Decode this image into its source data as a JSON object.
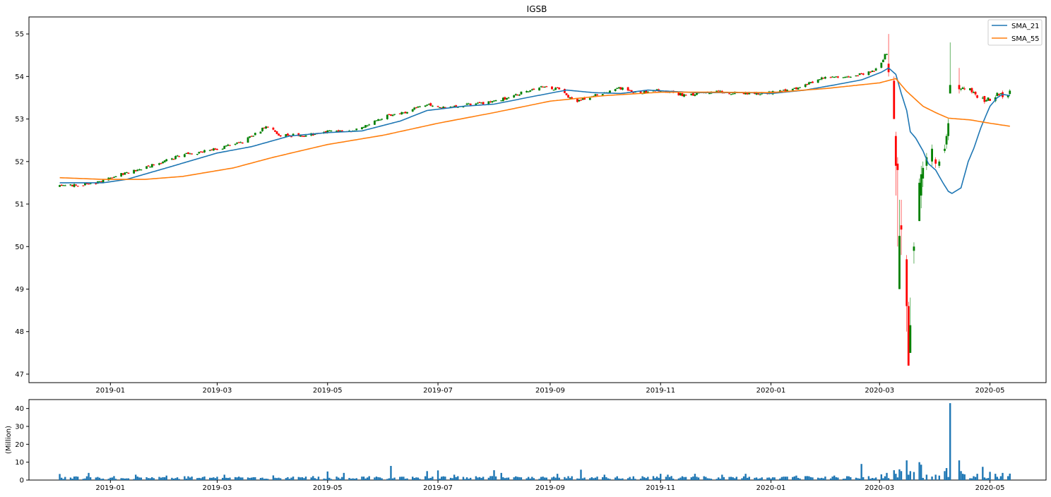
{
  "chart_data": [
    {
      "type": "candlestick",
      "title": "IGSB",
      "xlabel": "",
      "ylabel": "",
      "ylim": [
        46.8,
        55.4
      ],
      "xlim": [
        "2018-11-17",
        "2020-06-01"
      ],
      "grid": false,
      "legend_position": "top-right",
      "yticks": [
        47,
        48,
        49,
        50,
        51,
        52,
        53,
        54,
        55
      ],
      "xticks": [
        "2019-01",
        "2019-03",
        "2019-05",
        "2019-07",
        "2019-09",
        "2019-11",
        "2020-01",
        "2020-03",
        "2020-05"
      ],
      "xtick_dates": [
        "2019-01-01",
        "2019-03-01",
        "2019-05-01",
        "2019-07-01",
        "2019-09-01",
        "2019-11-01",
        "2020-01-01",
        "2020-03-01",
        "2020-05-01"
      ],
      "date_range": [
        "2018-12-04",
        "2020-05-12"
      ],
      "price_anchors": [
        [
          "2018-12-04",
          51.42
        ],
        [
          "2018-12-24",
          51.5
        ],
        [
          "2019-01-02",
          51.65
        ],
        [
          "2019-01-20",
          51.85
        ],
        [
          "2019-02-10",
          52.15
        ],
        [
          "2019-03-01",
          52.3
        ],
        [
          "2019-03-15",
          52.45
        ],
        [
          "2019-03-28",
          52.82
        ],
        [
          "2019-04-05",
          52.62
        ],
        [
          "2019-04-20",
          52.62
        ],
        [
          "2019-05-01",
          52.7
        ],
        [
          "2019-05-15",
          52.72
        ],
        [
          "2019-06-01",
          53.05
        ],
        [
          "2019-06-12",
          53.15
        ],
        [
          "2019-06-25",
          53.35
        ],
        [
          "2019-07-05",
          53.25
        ],
        [
          "2019-07-20",
          53.35
        ],
        [
          "2019-08-01",
          53.4
        ],
        [
          "2019-08-15",
          53.6
        ],
        [
          "2019-08-28",
          53.78
        ],
        [
          "2019-09-05",
          53.7
        ],
        [
          "2019-09-15",
          53.42
        ],
        [
          "2019-10-01",
          53.62
        ],
        [
          "2019-10-08",
          53.75
        ],
        [
          "2019-10-20",
          53.6
        ],
        [
          "2019-11-01",
          53.68
        ],
        [
          "2019-11-15",
          53.55
        ],
        [
          "2019-12-01",
          53.65
        ],
        [
          "2019-12-15",
          53.6
        ],
        [
          "2020-01-01",
          53.62
        ],
        [
          "2020-01-15",
          53.72
        ],
        [
          "2020-02-01",
          54.02
        ],
        [
          "2020-02-15",
          53.98
        ],
        [
          "2020-03-01",
          54.2
        ],
        [
          "2020-03-04",
          54.52
        ]
      ],
      "crash_candles": [
        {
          "date": "2020-03-06",
          "open": 54.3,
          "close": 54.1,
          "high": 55.0,
          "low": 54.0
        },
        {
          "date": "2020-03-09",
          "open": 53.9,
          "close": 53.0,
          "high": 54.0,
          "low": 53.0
        },
        {
          "date": "2020-03-10",
          "open": 52.6,
          "close": 51.9,
          "high": 52.7,
          "low": 51.2
        },
        {
          "date": "2020-03-11",
          "open": 51.95,
          "close": 51.8,
          "high": 52.1,
          "low": 50.0
        },
        {
          "date": "2020-03-12",
          "open": 49.0,
          "close": 50.25,
          "high": 51.1,
          "low": 49.0
        },
        {
          "date": "2020-03-13",
          "open": 50.5,
          "close": 50.4,
          "high": 51.1,
          "low": 49.8
        },
        {
          "date": "2020-03-16",
          "open": 49.7,
          "close": 48.6,
          "high": 49.8,
          "low": 48.0
        },
        {
          "date": "2020-03-17",
          "open": 48.6,
          "close": 47.2,
          "high": 48.7,
          "low": 47.2
        },
        {
          "date": "2020-03-18",
          "open": 47.5,
          "close": 48.15,
          "high": 48.8,
          "low": 47.5
        },
        {
          "date": "2020-03-20",
          "open": 49.9,
          "close": 50.0,
          "high": 50.1,
          "low": 49.6
        },
        {
          "date": "2020-03-23",
          "open": 50.6,
          "close": 51.5,
          "high": 51.6,
          "low": 50.6
        },
        {
          "date": "2020-03-24",
          "open": 51.2,
          "close": 51.7,
          "high": 51.9,
          "low": 50.9
        },
        {
          "date": "2020-03-25",
          "open": 51.6,
          "close": 51.85,
          "high": 52.0,
          "low": 51.4
        },
        {
          "date": "2020-03-27",
          "open": 51.9,
          "close": 52.1,
          "high": 52.2,
          "low": 51.8
        },
        {
          "date": "2020-03-30",
          "open": 52.0,
          "close": 52.3,
          "high": 52.4,
          "low": 51.9
        },
        {
          "date": "2020-04-01",
          "open": 52.05,
          "close": 51.95,
          "high": 52.1,
          "low": 51.85
        },
        {
          "date": "2020-04-03",
          "open": 51.9,
          "close": 52.0,
          "high": 52.05,
          "low": 51.85
        },
        {
          "date": "2020-04-06",
          "open": 52.25,
          "close": 52.3,
          "high": 52.4,
          "low": 52.2
        },
        {
          "date": "2020-04-07",
          "open": 52.4,
          "close": 52.6,
          "high": 52.65,
          "low": 52.3
        },
        {
          "date": "2020-04-08",
          "open": 52.6,
          "close": 52.9,
          "high": 53.0,
          "low": 52.5
        },
        {
          "date": "2020-04-09",
          "open": 53.6,
          "close": 53.8,
          "high": 54.8,
          "low": 53.6
        },
        {
          "date": "2020-04-14",
          "open": 53.8,
          "close": 53.7,
          "high": 54.2,
          "low": 53.6
        }
      ],
      "recovery_anchors": [
        [
          "2020-04-15",
          53.75
        ],
        [
          "2020-04-22",
          53.6
        ],
        [
          "2020-04-28",
          53.45
        ],
        [
          "2020-05-05",
          53.55
        ],
        [
          "2020-05-11",
          53.6
        ],
        [
          "2020-05-12",
          53.72
        ]
      ],
      "series": [
        {
          "name": "SMA_21",
          "color": "#1f77b4",
          "points": [
            [
              "2018-12-04",
              51.5
            ],
            [
              "2018-12-28",
              51.5
            ],
            [
              "2019-01-10",
              51.58
            ],
            [
              "2019-02-01",
              51.85
            ],
            [
              "2019-03-01",
              52.2
            ],
            [
              "2019-03-20",
              52.35
            ],
            [
              "2019-04-10",
              52.6
            ],
            [
              "2019-05-01",
              52.68
            ],
            [
              "2019-05-20",
              52.72
            ],
            [
              "2019-06-10",
              52.95
            ],
            [
              "2019-06-25",
              53.2
            ],
            [
              "2019-07-15",
              53.3
            ],
            [
              "2019-08-01",
              53.35
            ],
            [
              "2019-08-25",
              53.55
            ],
            [
              "2019-09-10",
              53.68
            ],
            [
              "2019-09-25",
              53.62
            ],
            [
              "2019-10-10",
              53.6
            ],
            [
              "2019-10-25",
              53.68
            ],
            [
              "2019-11-20",
              53.62
            ],
            [
              "2019-12-20",
              53.62
            ],
            [
              "2020-01-01",
              53.6
            ],
            [
              "2020-01-20",
              53.68
            ],
            [
              "2020-02-05",
              53.8
            ],
            [
              "2020-02-20",
              53.92
            ],
            [
              "2020-03-02",
              54.1
            ],
            [
              "2020-03-06",
              54.2
            ],
            [
              "2020-03-10",
              54.05
            ],
            [
              "2020-03-13",
              53.6
            ],
            [
              "2020-03-16",
              53.2
            ],
            [
              "2020-03-18",
              52.7
            ],
            [
              "2020-03-21",
              52.55
            ],
            [
              "2020-03-25",
              52.25
            ],
            [
              "2020-03-28",
              51.95
            ],
            [
              "2020-04-01",
              51.8
            ],
            [
              "2020-04-05",
              51.5
            ],
            [
              "2020-04-08",
              51.3
            ],
            [
              "2020-04-10",
              51.25
            ],
            [
              "2020-04-15",
              51.38
            ],
            [
              "2020-04-19",
              52.0
            ],
            [
              "2020-04-22",
              52.3
            ],
            [
              "2020-04-26",
              52.8
            ],
            [
              "2020-05-01",
              53.3
            ],
            [
              "2020-05-05",
              53.5
            ],
            [
              "2020-05-08",
              53.58
            ],
            [
              "2020-05-12",
              53.55
            ]
          ]
        },
        {
          "name": "SMA_55",
          "color": "#ff7f0e",
          "points": [
            [
              "2018-12-04",
              51.62
            ],
            [
              "2018-12-28",
              51.58
            ],
            [
              "2019-01-20",
              51.58
            ],
            [
              "2019-02-10",
              51.65
            ],
            [
              "2019-03-10",
              51.85
            ],
            [
              "2019-04-01",
              52.1
            ],
            [
              "2019-05-01",
              52.4
            ],
            [
              "2019-06-01",
              52.62
            ],
            [
              "2019-07-01",
              52.9
            ],
            [
              "2019-08-01",
              53.15
            ],
            [
              "2019-09-01",
              53.42
            ],
            [
              "2019-10-01",
              53.55
            ],
            [
              "2019-11-01",
              53.63
            ],
            [
              "2019-12-01",
              53.63
            ],
            [
              "2020-01-01",
              53.62
            ],
            [
              "2020-02-01",
              53.72
            ],
            [
              "2020-03-01",
              53.85
            ],
            [
              "2020-03-10",
              53.95
            ],
            [
              "2020-03-16",
              53.65
            ],
            [
              "2020-03-25",
              53.3
            ],
            [
              "2020-04-01",
              53.15
            ],
            [
              "2020-04-08",
              53.02
            ],
            [
              "2020-04-20",
              52.98
            ],
            [
              "2020-05-01",
              52.9
            ],
            [
              "2020-05-12",
              52.83
            ]
          ]
        }
      ]
    },
    {
      "type": "bar",
      "title": "",
      "xlabel": "",
      "ylabel": "(Million)",
      "ylim": [
        0,
        45
      ],
      "yticks": [
        0,
        10,
        20,
        30,
        40
      ],
      "xticks": [
        "2019-01",
        "2019-03",
        "2019-05",
        "2019-07",
        "2019-09",
        "2019-11",
        "2020-01",
        "2020-03",
        "2020-05"
      ],
      "bar_color": "#1f77b4",
      "baseline_volume": 1.5,
      "volume_spikes": [
        [
          "2018-12-04",
          3.4
        ],
        [
          "2018-12-20",
          4.0
        ],
        [
          "2019-01-15",
          3.0
        ],
        [
          "2019-02-01",
          2.5
        ],
        [
          "2019-03-05",
          3.0
        ],
        [
          "2019-04-01",
          2.6
        ],
        [
          "2019-04-20",
          3.5
        ],
        [
          "2019-05-01",
          4.8
        ],
        [
          "2019-05-05",
          6.4
        ],
        [
          "2019-05-10",
          4.0
        ],
        [
          "2019-05-25",
          3.5
        ],
        [
          "2019-06-05",
          7.9
        ],
        [
          "2019-06-25",
          5.0
        ],
        [
          "2019-07-01",
          5.4
        ],
        [
          "2019-07-10",
          3.0
        ],
        [
          "2019-08-01",
          5.5
        ],
        [
          "2019-08-05",
          4.0
        ],
        [
          "2019-09-05",
          3.5
        ],
        [
          "2019-09-18",
          5.8
        ],
        [
          "2019-10-01",
          3.0
        ],
        [
          "2019-11-01",
          3.5
        ],
        [
          "2019-11-05",
          3.0
        ],
        [
          "2019-11-20",
          3.5
        ],
        [
          "2019-12-05",
          3.0
        ],
        [
          "2019-12-18",
          3.5
        ],
        [
          "2019-12-21",
          3.6
        ],
        [
          "2019-12-28",
          3.5
        ],
        [
          "2020-01-15",
          2.5
        ],
        [
          "2020-02-05",
          2.5
        ],
        [
          "2020-02-20",
          9.0
        ],
        [
          "2020-03-02",
          3.2
        ],
        [
          "2020-03-05",
          4.0
        ],
        [
          "2020-03-09",
          5.5
        ],
        [
          "2020-03-10",
          3.5
        ],
        [
          "2020-03-12",
          6.0
        ],
        [
          "2020-03-13",
          5.0
        ],
        [
          "2020-03-16",
          11.0
        ],
        [
          "2020-03-17",
          3.0
        ],
        [
          "2020-03-18",
          5.0
        ],
        [
          "2020-03-19",
          5.5
        ],
        [
          "2020-03-20",
          4.5
        ],
        [
          "2020-03-23",
          10.0
        ],
        [
          "2020-03-24",
          8.6
        ],
        [
          "2020-03-26",
          3.5
        ],
        [
          "2020-03-27",
          3.0
        ],
        [
          "2020-04-01",
          3.0
        ],
        [
          "2020-04-03",
          2.5
        ],
        [
          "2020-04-06",
          5.0
        ],
        [
          "2020-04-07",
          6.7
        ],
        [
          "2020-04-09",
          43.0
        ],
        [
          "2020-04-13",
          3.0
        ],
        [
          "2020-04-14",
          11.0
        ],
        [
          "2020-04-15",
          5.0
        ],
        [
          "2020-04-16",
          3.5
        ],
        [
          "2020-04-17",
          3.2
        ],
        [
          "2020-04-24",
          3.5
        ],
        [
          "2020-04-27",
          7.4
        ],
        [
          "2020-05-01",
          4.6
        ],
        [
          "2020-05-04",
          3.5
        ],
        [
          "2020-05-08",
          4.0
        ],
        [
          "2020-05-12",
          3.6
        ]
      ]
    }
  ]
}
